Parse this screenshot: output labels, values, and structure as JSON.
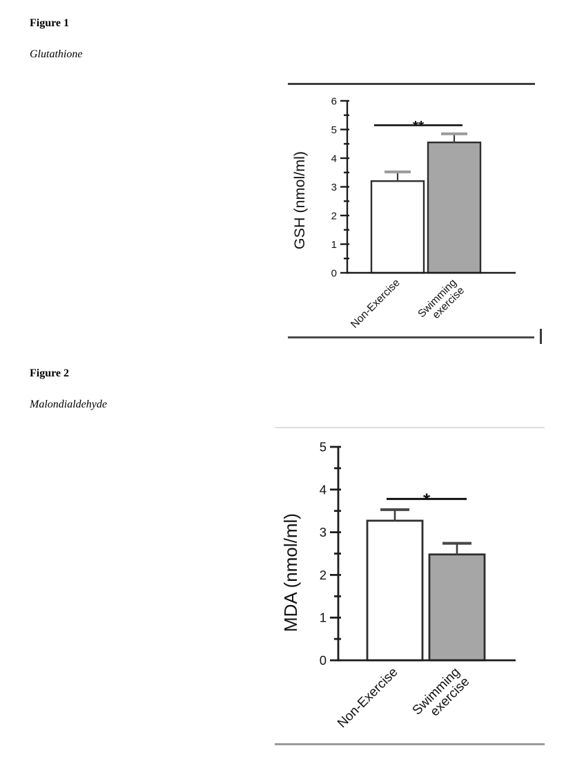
{
  "page": {
    "background": "#ffffff",
    "sections": [
      {
        "heading": "Figure 1",
        "caption": "Glutathione"
      },
      {
        "heading": "Figure 2",
        "caption": "Malondialdehyde"
      }
    ]
  },
  "colors": {
    "ink": "#111111",
    "axis": "#1c1c1c",
    "bar_stroke": "#2e2e2e",
    "whisker": "#3c3c3c",
    "error_cap_fig1": "#9b9b9b",
    "error_cap_fig2": "#474747",
    "rule_fig1_top": "#3e3e3e",
    "rule_fig1_bottom": "#4a4a4a",
    "rule_fig2_top": "#dedede",
    "rule_fig2_bottom": "#9a9a9a",
    "caret_mark": "#3a3a3a"
  },
  "chart_data": [
    {
      "type": "bar",
      "title": "",
      "xlabel": "",
      "ylabel": "GSH (nmol/ml)",
      "categories": [
        "Non-Exercise",
        "Swimming\nexercise"
      ],
      "values": [
        3.2,
        4.55
      ],
      "errors_upper": [
        0.32,
        0.3
      ],
      "ylim": [
        0,
        6
      ],
      "yticks": [
        0,
        1,
        2,
        3,
        4,
        5,
        6
      ],
      "ytick_step": 1,
      "minor_tick_step": 0.5,
      "grid": "off",
      "legend": "none",
      "bar_fills": [
        "#ffffff",
        "#a6a6a6"
      ],
      "significance": {
        "label": "**",
        "y_value": 5.15
      }
    },
    {
      "type": "bar",
      "title": "",
      "xlabel": "",
      "ylabel": "MDA (nmol/ml)",
      "categories": [
        "Non-Exercise",
        "Swimming\nexercise"
      ],
      "values": [
        3.27,
        2.48
      ],
      "errors_upper": [
        0.26,
        0.26
      ],
      "ylim": [
        0,
        5
      ],
      "yticks": [
        0,
        1,
        2,
        3,
        4,
        5
      ],
      "ytick_step": 1,
      "minor_tick_step": 0.5,
      "grid": "off",
      "legend": "none",
      "bar_fills": [
        "#ffffff",
        "#a6a6a6"
      ],
      "significance": {
        "label": "*",
        "y_value": 3.78
      }
    }
  ]
}
